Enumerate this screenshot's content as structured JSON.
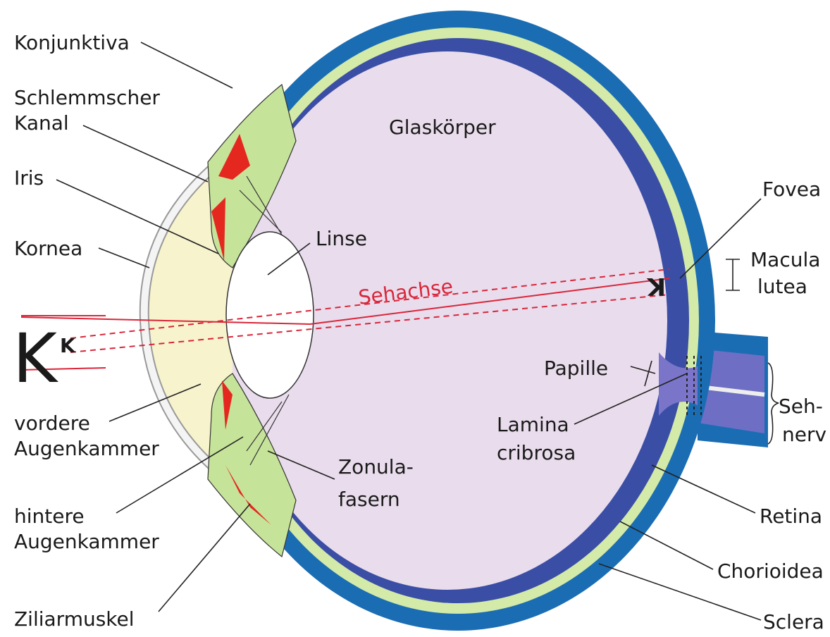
{
  "labels": {
    "konjunktiva": "Konjunktiva",
    "schlemmscher_kanal": [
      "Schlemmscher",
      "Kanal"
    ],
    "iris": "Iris",
    "kornea": "Kornea",
    "vordere_augenkammer": [
      "vordere",
      "Augenkammer"
    ],
    "hintere_augenkammer": [
      "hintere",
      "Augenkammer"
    ],
    "ziliarmuskel": "Ziliarmuskel",
    "glaskoerper": "Glaskörper",
    "linse": "Linse",
    "sehachse": "Sehachse",
    "fovea": "Fovea",
    "macula_lutea": [
      "Macula",
      "lutea"
    ],
    "papille": "Papille",
    "lamina_cribrosa": [
      "Lamina",
      "cribrosa"
    ],
    "zonulafasern": [
      "Zonula-",
      "fasern"
    ],
    "sehnerv": [
      "Seh-",
      "nerv"
    ],
    "retina": "Retina",
    "chorioidea": "Chorioidea",
    "sclera": "Sclera"
  },
  "symbols": {
    "object": "K",
    "object_small": "K",
    "retina_image": "K"
  }
}
